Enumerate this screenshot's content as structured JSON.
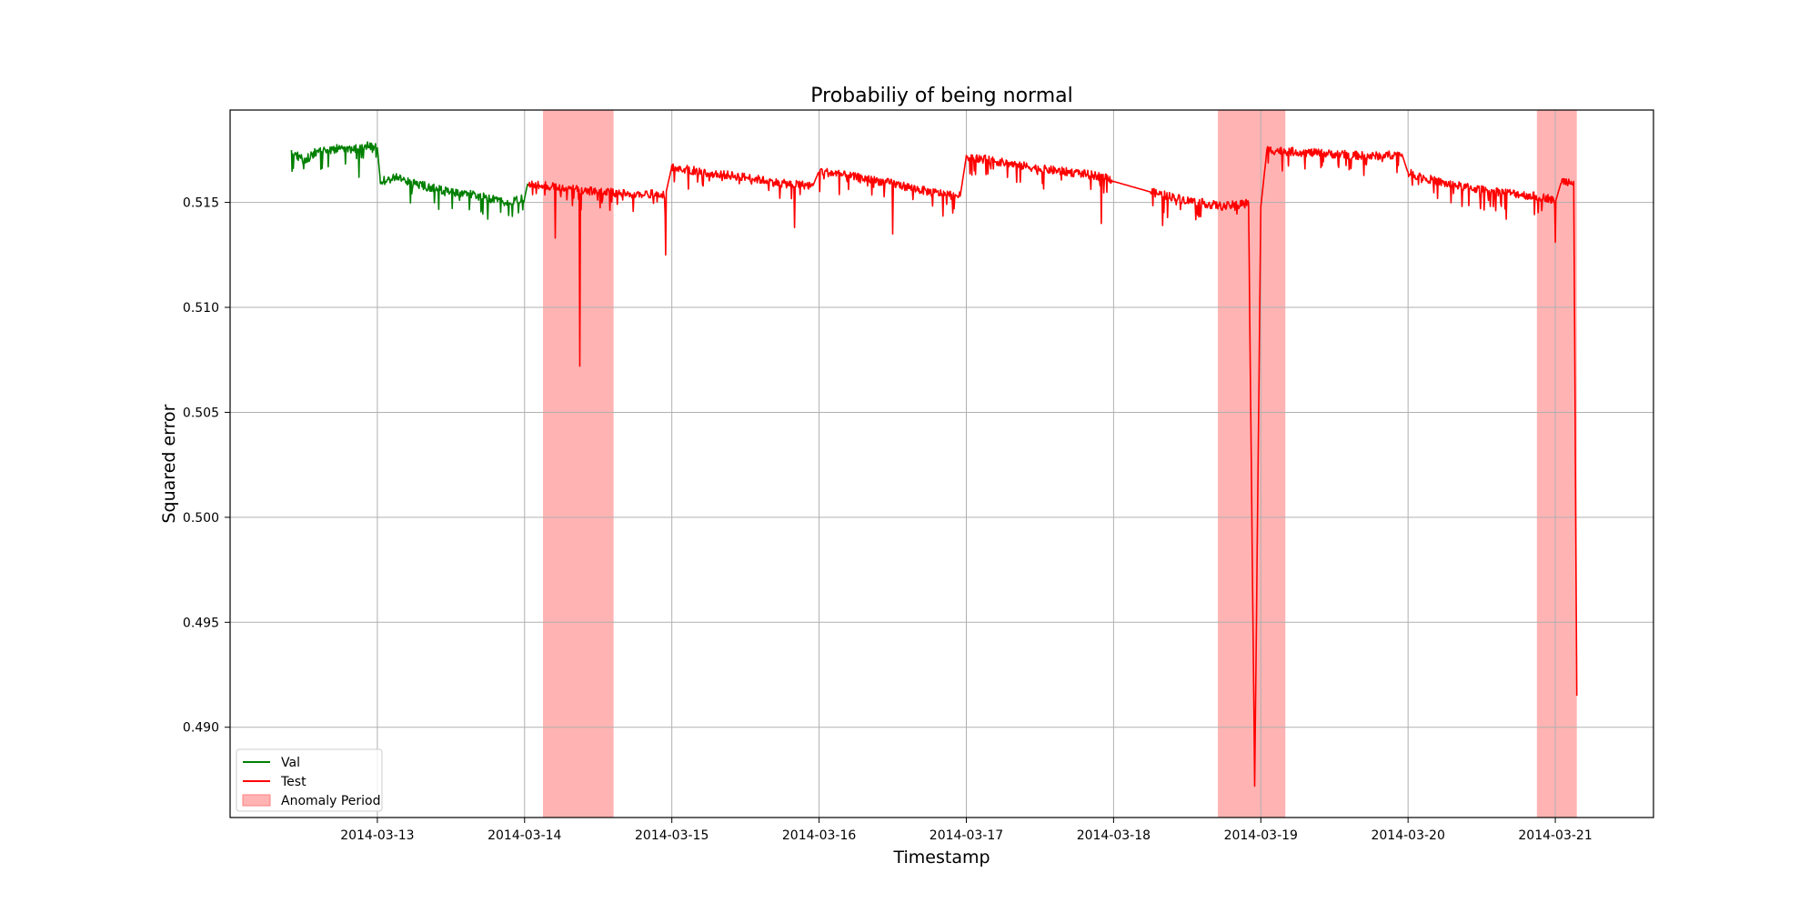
{
  "chart_data": {
    "type": "line",
    "title": "Probabiliy of being normal",
    "xlabel": "Timestamp",
    "ylabel": "Squared error",
    "x_axis": {
      "type": "date",
      "range": [
        "2014-03-12 00:00",
        "2014-03-21 16:00"
      ],
      "ticks": [
        "2014-03-13",
        "2014-03-14",
        "2014-03-15",
        "2014-03-16",
        "2014-03-17",
        "2014-03-18",
        "2014-03-19",
        "2014-03-20",
        "2014-03-21"
      ]
    },
    "y_axis": {
      "range": [
        0.4857,
        0.5194
      ],
      "ticks": [
        0.49,
        0.495,
        0.5,
        0.505,
        0.51,
        0.515
      ],
      "tick_labels": [
        "0.490",
        "0.495",
        "0.500",
        "0.505",
        "0.510",
        "0.515"
      ]
    },
    "grid": true,
    "legend": {
      "position": "lower-left"
    },
    "colors": {
      "val": "#008000",
      "test": "#ff0000",
      "anomaly": "#ff8080"
    },
    "series": [
      {
        "name": "Val",
        "color": "#008000",
        "points": [
          [
            "2014-03-12 10:00",
            0.5174
          ],
          [
            "2014-03-12 12:00",
            0.517
          ],
          [
            "2014-03-12 14:00",
            0.5174
          ],
          [
            "2014-03-12 16:00",
            0.5175
          ],
          [
            "2014-03-12 18:00",
            0.5176
          ],
          [
            "2014-03-12 20:00",
            0.5175
          ],
          [
            "2014-03-12 22:00",
            0.5177
          ],
          [
            "2014-03-13 00:00",
            0.5176
          ],
          [
            "2014-03-13 00:30",
            0.516
          ],
          [
            "2014-03-13 03:00",
            0.5162
          ],
          [
            "2014-03-13 06:00",
            0.5159
          ],
          [
            "2014-03-13 09:00",
            0.5157
          ],
          [
            "2014-03-13 12:00",
            0.5155
          ],
          [
            "2014-03-13 15:00",
            0.5154
          ],
          [
            "2014-03-13 18:00",
            0.5152
          ],
          [
            "2014-03-13 21:00",
            0.515
          ],
          [
            "2014-03-14 00:00",
            0.5152
          ],
          [
            "2014-03-14 00:30",
            0.5159
          ]
        ],
        "dips": [
          [
            "2014-03-12 12:00",
            0.5166
          ],
          [
            "2014-03-12 21:00",
            0.5162
          ],
          [
            "2014-03-13 18:00",
            0.5142
          ],
          [
            "2014-03-13 23:00",
            0.5145
          ]
        ]
      },
      {
        "name": "Test",
        "color": "#ff0000",
        "points": [
          [
            "2014-03-14 00:30",
            0.5159
          ],
          [
            "2014-03-14 06:00",
            0.5157
          ],
          [
            "2014-03-14 12:00",
            0.5155
          ],
          [
            "2014-03-14 18:00",
            0.5154
          ],
          [
            "2014-03-14 23:00",
            0.5154
          ],
          [
            "2014-03-15 00:00",
            0.5167
          ],
          [
            "2014-03-15 06:00",
            0.5164
          ],
          [
            "2014-03-15 12:00",
            0.5162
          ],
          [
            "2014-03-15 18:00",
            0.5159
          ],
          [
            "2014-03-15 23:00",
            0.5158
          ],
          [
            "2014-03-16 00:00",
            0.5165
          ],
          [
            "2014-03-16 06:00",
            0.5162
          ],
          [
            "2014-03-16 12:00",
            0.5159
          ],
          [
            "2014-03-16 18:00",
            0.5155
          ],
          [
            "2014-03-16 23:00",
            0.5153
          ],
          [
            "2014-03-17 00:00",
            0.5172
          ],
          [
            "2014-03-17 06:00",
            0.5169
          ],
          [
            "2014-03-17 12:00",
            0.5166
          ],
          [
            "2014-03-17 18:00",
            0.5164
          ],
          [
            "2014-03-17 23:00",
            0.5162
          ],
          [
            "2014-03-18 00:00",
            0.516
          ],
          [
            "2014-03-18 06:00",
            0.5155
          ],
          [
            "2014-03-18 12:00",
            0.5151
          ],
          [
            "2014-03-18 18:00",
            0.5148
          ],
          [
            "2014-03-18 22:00",
            0.515
          ],
          [
            "2014-03-18 23:00",
            0.4872
          ],
          [
            "2014-03-19 00:00",
            0.5148
          ],
          [
            "2014-03-19 01:00",
            0.5175
          ],
          [
            "2014-03-19 06:00",
            0.5174
          ],
          [
            "2014-03-19 12:00",
            0.5173
          ],
          [
            "2014-03-19 18:00",
            0.5172
          ],
          [
            "2014-03-19 23:00",
            0.5173
          ],
          [
            "2014-03-20 00:00",
            0.5164
          ],
          [
            "2014-03-20 06:00",
            0.5159
          ],
          [
            "2014-03-20 12:00",
            0.5156
          ],
          [
            "2014-03-20 18:00",
            0.5154
          ],
          [
            "2014-03-20 23:00",
            0.5152
          ],
          [
            "2014-03-21 00:00",
            0.515
          ],
          [
            "2014-03-21 01:00",
            0.516
          ],
          [
            "2014-03-21 03:00",
            0.516
          ],
          [
            "2014-03-21 03:30",
            0.4915
          ]
        ],
        "dips": [
          [
            "2014-03-14 05:00",
            0.5133
          ],
          [
            "2014-03-14 09:00",
            0.5072
          ],
          [
            "2014-03-14 23:00",
            0.5125
          ],
          [
            "2014-03-15 20:00",
            0.5138
          ],
          [
            "2014-03-16 12:00",
            0.5135
          ],
          [
            "2014-03-17 22:00",
            0.514
          ],
          [
            "2014-03-18 08:00",
            0.5139
          ],
          [
            "2014-03-20 16:00",
            0.5142
          ],
          [
            "2014-03-21 00:00",
            0.5131
          ]
        ]
      }
    ],
    "anomaly_periods": {
      "label": "Anomaly Period",
      "ranges": [
        [
          "2014-03-14 03:00",
          "2014-03-14 14:30"
        ],
        [
          "2014-03-18 17:00",
          "2014-03-19 04:00"
        ],
        [
          "2014-03-20 21:00",
          "2014-03-21 03:30"
        ]
      ]
    }
  }
}
